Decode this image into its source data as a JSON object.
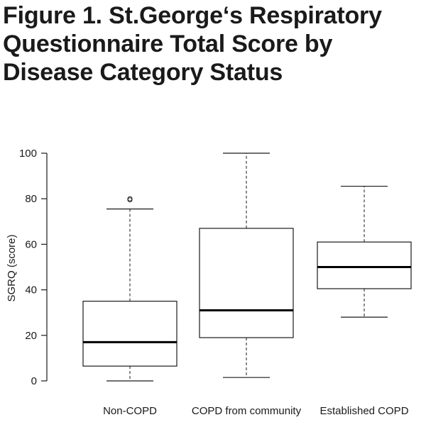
{
  "title": {
    "line1": "Figure 1. St.George‘s Respiratory",
    "line2": "Questionnaire Total Score by",
    "line3": "Disease Category Status"
  },
  "chart_data": {
    "type": "boxplot",
    "ylabel": "SGRQ (score)",
    "ylim": [
      0,
      100
    ],
    "yticks": [
      0,
      20,
      40,
      60,
      80,
      100
    ],
    "grid": false,
    "categories": [
      "Non-COPD",
      "COPD from community",
      "Established COPD"
    ],
    "boxes": [
      {
        "category": "Non-COPD",
        "whisker_low": 0,
        "q1": 6.5,
        "median": 17,
        "q3": 35,
        "whisker_high": 75.5,
        "outliers": [
          79.5,
          80
        ]
      },
      {
        "category": "COPD from community",
        "whisker_low": 1.5,
        "q1": 19,
        "median": 31,
        "q3": 67,
        "whisker_high": 100,
        "outliers": []
      },
      {
        "category": "Established COPD",
        "whisker_low": 28,
        "q1": 40.5,
        "median": 50,
        "q3": 61,
        "whisker_high": 85.5,
        "outliers": []
      }
    ]
  }
}
